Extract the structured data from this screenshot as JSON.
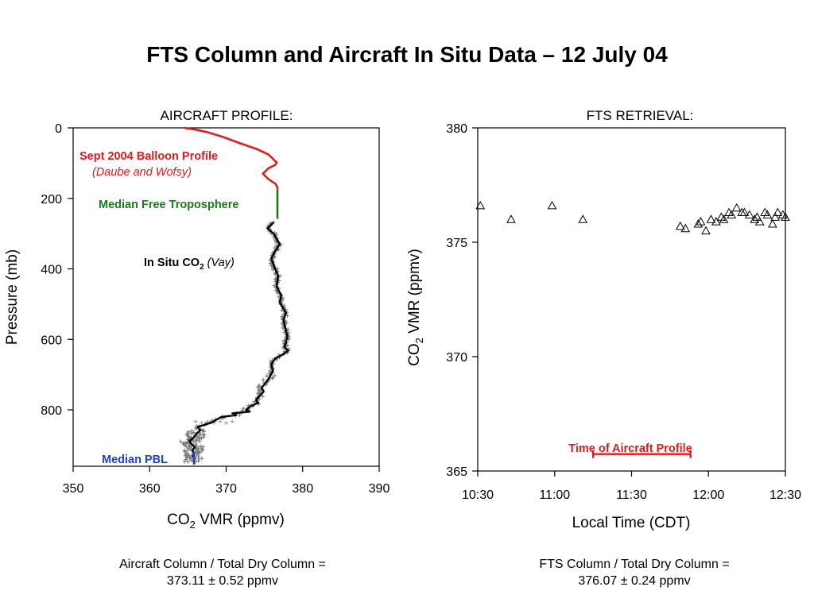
{
  "title": "FTS Column and Aircraft In Situ Data – 12 July 04",
  "chart_data": [
    {
      "type": "line",
      "panel_title": "AIRCRAFT PROFILE:",
      "xlabel_main": "CO",
      "xlabel_sub": "2",
      "xlabel_rest": " VMR (ppmv)",
      "ylabel": "Pressure (mb)",
      "xlim": [
        350,
        390
      ],
      "ylim": [
        960,
        0
      ],
      "y_inverted": true,
      "xticks": [
        350,
        360,
        370,
        380,
        390
      ],
      "yticks": [
        0,
        200,
        400,
        600,
        800
      ],
      "series": [
        {
          "name": "Sept 2004 Balloon Profile",
          "annotation_line1": "Sept 2004 Balloon Profile",
          "annotation_line2": "(Daube and Wofsy)",
          "color": "#e41a1c",
          "x": [
            364.5,
            366,
            367.5,
            369.5,
            372,
            374,
            375.5,
            376,
            376.3,
            376.6,
            376.4,
            375.5,
            374.8,
            375.5,
            376.2,
            376.5,
            376.7,
            376.7
          ],
          "y": [
            0,
            5,
            12,
            25,
            45,
            60,
            75,
            85,
            92,
            98,
            105,
            115,
            130,
            145,
            155,
            160,
            170,
            175
          ]
        },
        {
          "name": "Median Free Troposphere",
          "annotation": "Median Free Troposphere",
          "color": "#1a7a1a",
          "x": [
            376.7,
            376.7
          ],
          "y": [
            175,
            258
          ]
        },
        {
          "name": "In Situ CO2",
          "annotation_main": "In Situ CO",
          "annotation_sub": "2",
          "annotation_rest": " (Vay)",
          "color": "#000000",
          "x": [
            376.2,
            375.4,
            376.2,
            377.0,
            376.4,
            375.9,
            376.3,
            376.8,
            376.6,
            377.2,
            377.0,
            377.4,
            377.8,
            377.5,
            377.7,
            378.0,
            377.8,
            377.6,
            377.9,
            378.1,
            377.6,
            376.4,
            375.9,
            376.1,
            375.6,
            375.0,
            374.6,
            374.9,
            374.4,
            373.9,
            374.2,
            373.2,
            372.6,
            373.1,
            371.8,
            370.8,
            371.3,
            369.4,
            368.7,
            368.2,
            367.3,
            366.3,
            366.6,
            366.1,
            365.7,
            365.2,
            365.4,
            365.9,
            365.6,
            365.8,
            365.6
          ],
          "y": [
            268,
            285,
            300,
            330,
            350,
            370,
            395,
            420,
            450,
            475,
            495,
            510,
            525,
            545,
            565,
            590,
            610,
            620,
            628,
            632,
            640,
            655,
            670,
            690,
            710,
            728,
            738,
            748,
            760,
            772,
            780,
            790,
            800,
            805,
            808,
            810,
            815,
            820,
            828,
            835,
            842,
            848,
            858,
            868,
            880,
            888,
            895,
            905,
            915,
            925,
            935
          ]
        },
        {
          "name": "Median PBL",
          "annotation": "Median PBL",
          "color": "#1f3fcf",
          "x": [
            365.8,
            365.8
          ],
          "y": [
            918,
            955
          ]
        }
      ]
    },
    {
      "type": "scatter",
      "panel_title": "FTS RETRIEVAL:",
      "xlabel": "Local Time (CDT)",
      "ylabel_main": "CO",
      "ylabel_sub": "2",
      "ylabel_rest": " VMR (ppmv)",
      "xlim": [
        630,
        750
      ],
      "ylim": [
        365,
        380
      ],
      "xticks": [
        630,
        660,
        690,
        720,
        750
      ],
      "xtick_labels": [
        "10:30",
        "11:00",
        "11:30",
        "12:00",
        "12:30"
      ],
      "yticks": [
        365,
        370,
        375,
        380
      ],
      "points": {
        "marker": "open-triangle",
        "x": [
          631,
          643,
          659,
          671,
          709,
          711,
          716,
          717,
          719,
          721,
          723,
          725,
          728,
          729,
          731,
          733,
          736,
          739,
          740,
          742,
          743,
          745,
          746,
          747,
          749,
          750,
          738,
          734,
          726
        ],
        "y": [
          376.6,
          376.0,
          376.6,
          376.0,
          375.7,
          375.6,
          375.8,
          375.9,
          375.5,
          376.0,
          375.9,
          376.1,
          376.3,
          376.2,
          376.5,
          376.3,
          376.2,
          376.1,
          375.9,
          376.3,
          376.2,
          375.8,
          376.1,
          376.3,
          376.2,
          376.1,
          376.0,
          376.3,
          376.0
        ]
      },
      "annotation": {
        "label": "Time of Aircraft Profile",
        "color": "#e41a1c",
        "x_start": 675,
        "x_end": 713,
        "y": 365.6
      }
    }
  ],
  "footers": {
    "left_line1": "Aircraft Column / Total Dry Column =",
    "left_line2": "373.11 ± 0.52 ppmv",
    "right_line1": "FTS Column / Total Dry Column =",
    "right_line2": "376.07 ± 0.24 ppmv"
  }
}
